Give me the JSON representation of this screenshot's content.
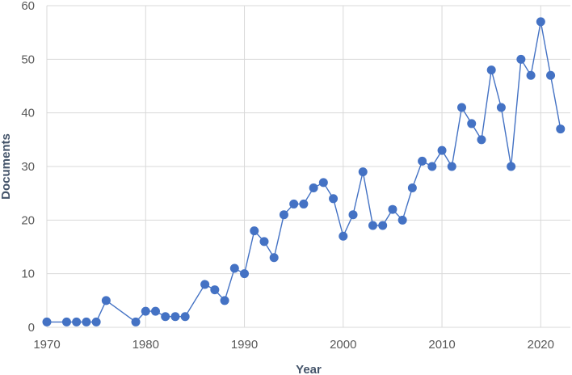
{
  "chart_data": {
    "type": "line",
    "title": "",
    "xlabel": "Year",
    "ylabel": "Documents",
    "xlim": [
      1970,
      2023
    ],
    "ylim": [
      0,
      60
    ],
    "x_ticks": [
      "1970",
      "1980",
      "1990",
      "2000",
      "2010",
      "2020"
    ],
    "y_ticks": [
      "0",
      "10",
      "20",
      "30",
      "40",
      "50",
      "60"
    ],
    "grid": true,
    "legend": "none",
    "color": "#4472c4",
    "series": [
      {
        "x": [
          1970,
          1972,
          1973,
          1974,
          1975,
          1976,
          1979,
          1980,
          1981,
          1982,
          1983,
          1984,
          1986,
          1987,
          1988,
          1989,
          1990,
          1991,
          1992,
          1993,
          1994,
          1995,
          1996,
          1997,
          1998,
          1999,
          2000,
          2001,
          2002,
          2003,
          2004,
          2005,
          2006,
          2007,
          2008,
          2009,
          2010,
          2011,
          2012,
          2013,
          2014,
          2015,
          2016,
          2017,
          2018,
          2019,
          2020,
          2021,
          2022
        ],
        "values": [
          1,
          1,
          1,
          1,
          1,
          5,
          1,
          3,
          3,
          2,
          2,
          2,
          8,
          7,
          5,
          11,
          10,
          18,
          16,
          13,
          21,
          23,
          23,
          26,
          27,
          24,
          17,
          21,
          29,
          19,
          19,
          22,
          20,
          26,
          31,
          30,
          33,
          30,
          41,
          38,
          35,
          48,
          41,
          30,
          50,
          47,
          57,
          47,
          37
        ]
      }
    ]
  }
}
